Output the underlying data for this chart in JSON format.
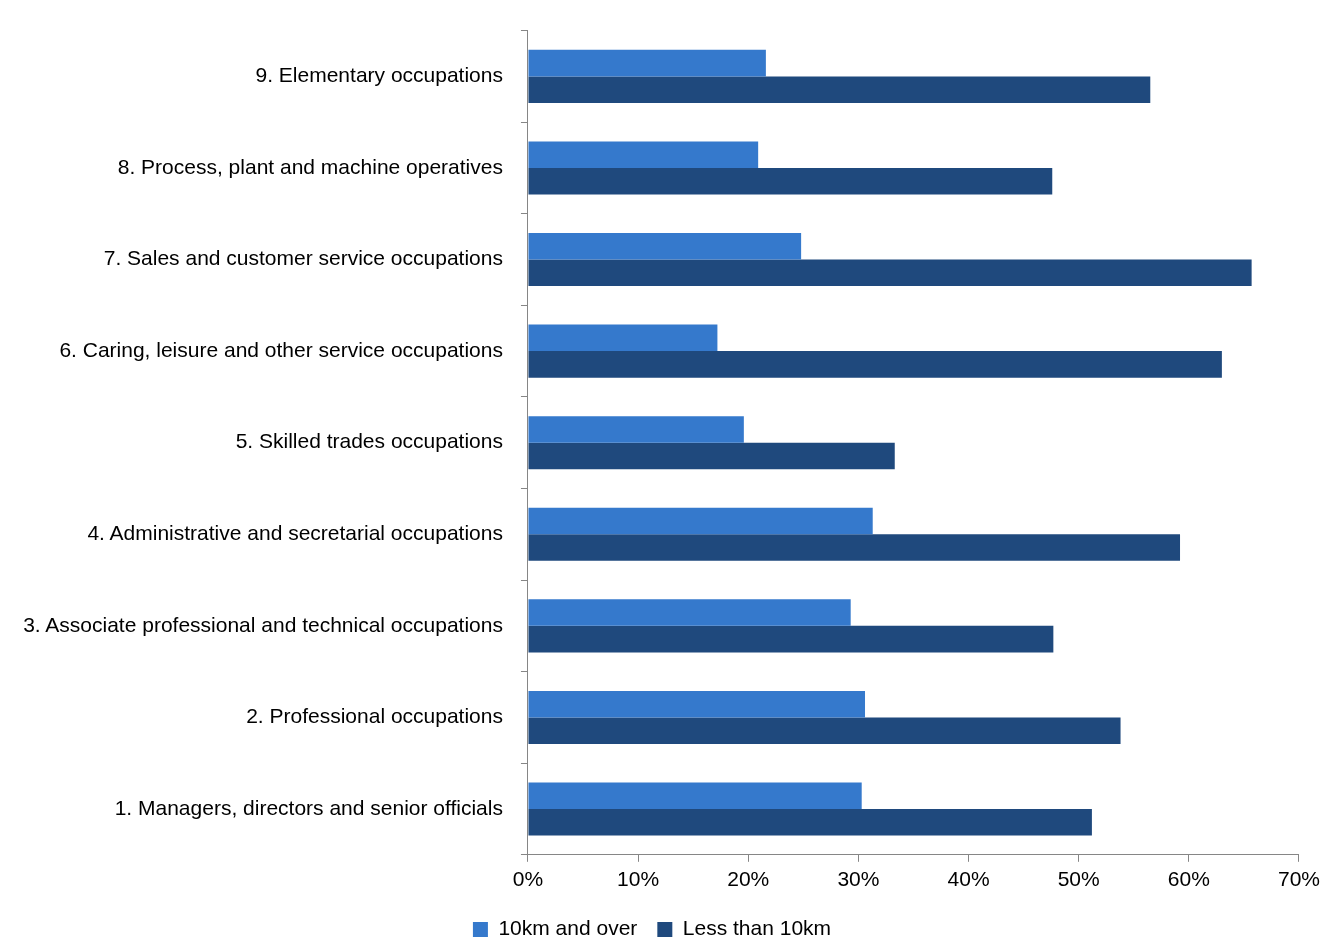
{
  "chart_data": {
    "type": "bar",
    "orientation": "horizontal",
    "categories": [
      "9. Elementary occupations",
      "8. Process, plant and machine operatives",
      "7. Sales and customer service occupations",
      "6. Caring, leisure and other service occupations",
      "5. Skilled trades occupations",
      "4. Administrative and secretarial occupations",
      "3. Associate professional and technical occupations",
      "2. Professional occupations",
      "1. Managers, directors and senior officials"
    ],
    "series": [
      {
        "name": "10km and over",
        "color": "#3579cc",
        "values": [
          21.6,
          20.9,
          24.8,
          17.2,
          19.6,
          31.3,
          29.3,
          30.6,
          30.3
        ]
      },
      {
        "name": "Less than 10km",
        "color": "#1f497d",
        "values": [
          56.5,
          47.6,
          65.7,
          63.0,
          33.3,
          59.2,
          47.7,
          53.8,
          51.2
        ]
      }
    ],
    "xlim": [
      0,
      70
    ],
    "xticks": [
      {
        "value": 0,
        "label": "0%"
      },
      {
        "value": 10,
        "label": "10%"
      },
      {
        "value": 20,
        "label": "20%"
      },
      {
        "value": 30,
        "label": "30%"
      },
      {
        "value": 40,
        "label": "40%"
      },
      {
        "value": 50,
        "label": "50%"
      },
      {
        "value": 60,
        "label": "60%"
      },
      {
        "value": 70,
        "label": "70%"
      }
    ],
    "grid": false,
    "legend": "bottom"
  }
}
